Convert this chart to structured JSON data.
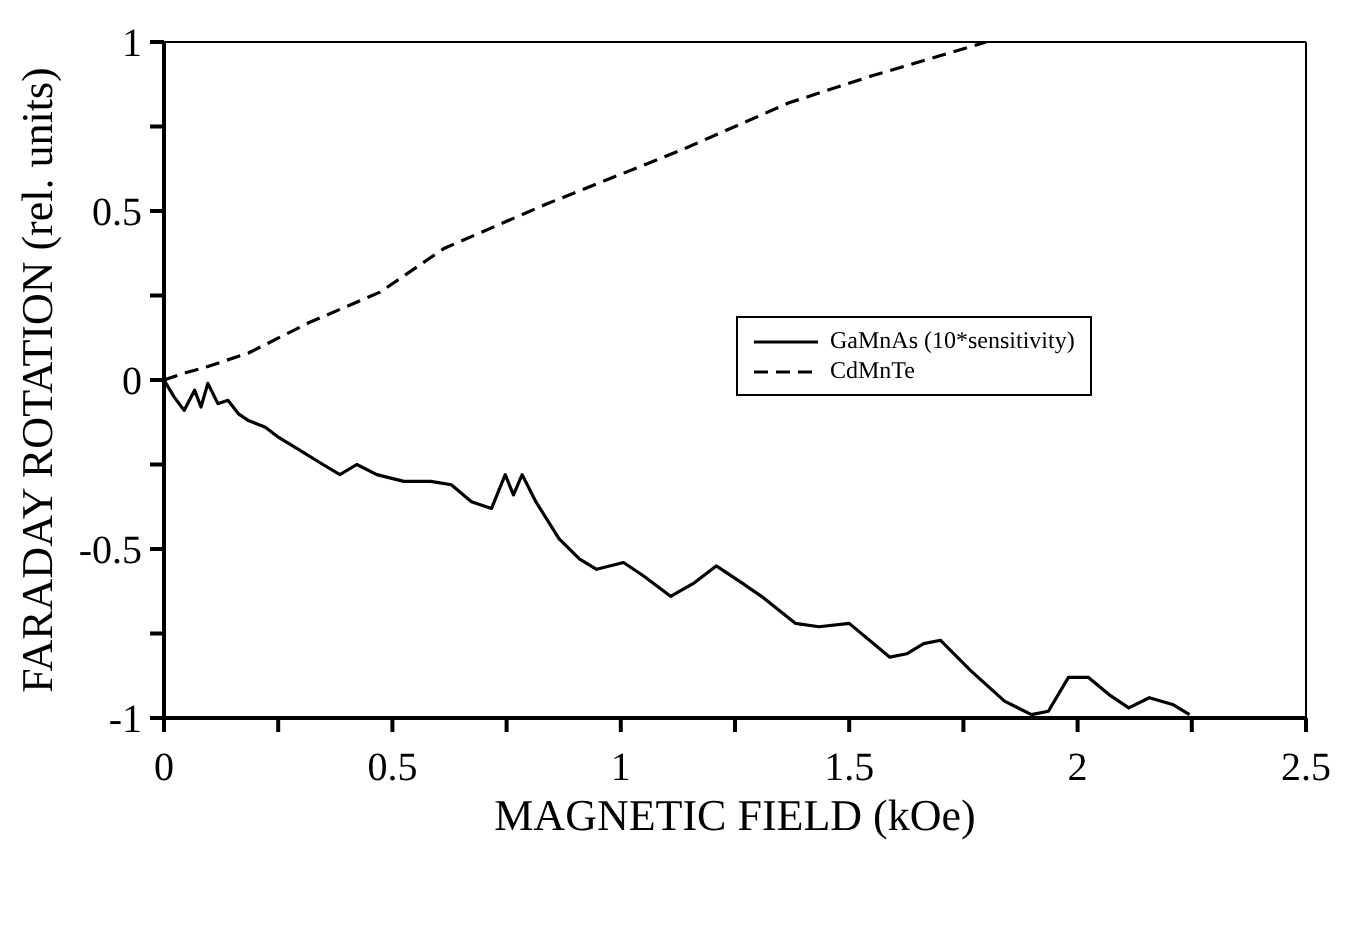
{
  "chart_data": {
    "type": "line",
    "xlabel": "MAGNETIC FIELD (kOe)",
    "ylabel": "FARADAY ROTATION (rel. units)",
    "xlim": [
      0,
      2.5
    ],
    "ylim": [
      -1,
      1
    ],
    "xticks": [
      0,
      {
        "value": 0.25,
        "label": null
      },
      0.5,
      {
        "value": 0.75,
        "label": null
      },
      1,
      {
        "value": 1.25,
        "label": null
      },
      1.5,
      {
        "value": 1.75,
        "label": null
      },
      2,
      {
        "value": 2.25,
        "label": null
      },
      2.5
    ],
    "yticks": [
      -1,
      {
        "value": -0.75,
        "label": null
      },
      -0.5,
      {
        "value": -0.25,
        "label": null
      },
      0,
      {
        "value": 0.25,
        "label": null
      },
      0.5,
      {
        "value": 0.75,
        "label": null
      },
      1
    ],
    "grid": false,
    "legend": "right",
    "marker": "none",
    "series": [
      {
        "name": "GaMnAs (10*sensitivity)",
        "color": "#000000",
        "line_style": "solid",
        "x": [
          0,
          0.022,
          0.044,
          0.067,
          0.081,
          0.096,
          0.118,
          0.14,
          0.163,
          0.185,
          0.222,
          0.251,
          0.288,
          0.348,
          0.385,
          0.422,
          0.466,
          0.525,
          0.584,
          0.629,
          0.673,
          0.717,
          0.747,
          0.765,
          0.784,
          0.814,
          0.865,
          0.91,
          0.947,
          1.006,
          1.05,
          1.109,
          1.161,
          1.209,
          1.265,
          1.308,
          1.382,
          1.434,
          1.5,
          1.589,
          1.626,
          1.663,
          1.7,
          1.766,
          1.84,
          1.899,
          1.936,
          1.98,
          2.024,
          2.068,
          2.112,
          2.157,
          2.208,
          2.245
        ],
        "values": [
          0,
          -0.05,
          -0.09,
          -0.03,
          -0.08,
          -0.01,
          -0.07,
          -0.06,
          -0.1,
          -0.12,
          -0.14,
          -0.17,
          -0.2,
          -0.25,
          -0.28,
          -0.25,
          -0.28,
          -0.3,
          -0.3,
          -0.31,
          -0.36,
          -0.38,
          -0.28,
          -0.34,
          -0.28,
          -0.36,
          -0.47,
          -0.53,
          -0.56,
          -0.54,
          -0.58,
          -0.64,
          -0.6,
          -0.55,
          -0.6,
          -0.64,
          -0.72,
          -0.73,
          -0.72,
          -0.82,
          -0.81,
          -0.78,
          -0.77,
          -0.86,
          -0.95,
          -0.99,
          -0.98,
          -0.88,
          -0.88,
          -0.93,
          -0.97,
          -0.94,
          -0.96,
          -0.99
        ]
      },
      {
        "name": "CdMnTe",
        "color": "#000000",
        "line_style": "dashed",
        "x": [
          0,
          0.044,
          0.096,
          0.185,
          0.318,
          0.473,
          0.614,
          0.836,
          1.132,
          1.368,
          1.55,
          1.8
        ],
        "values": [
          0,
          0.02,
          0.04,
          0.08,
          0.17,
          0.26,
          0.39,
          0.52,
          0.68,
          0.82,
          0.9,
          1
        ]
      }
    ]
  }
}
